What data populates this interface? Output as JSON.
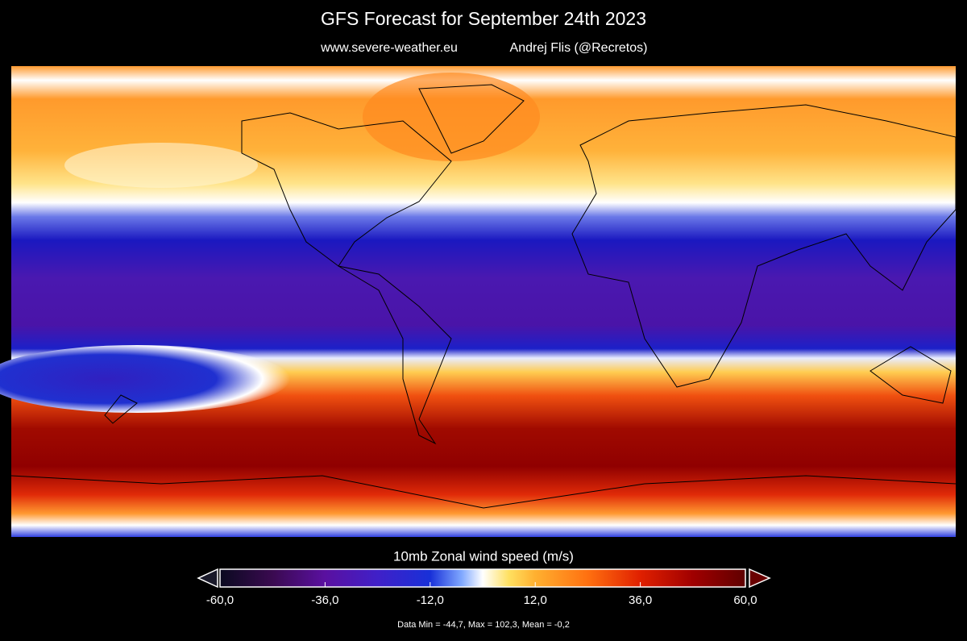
{
  "header": {
    "title": "GFS Forecast for September 24th 2023",
    "site": "www.severe-weather.eu",
    "author": "Andrej Flis (@Recretos)"
  },
  "colorbar": {
    "label": "10mb Zonal wind speed (m/s)",
    "range": [
      -60,
      60
    ],
    "ticks": [
      {
        "value": -60,
        "label": "-60,0"
      },
      {
        "value": -36,
        "label": "-36,0"
      },
      {
        "value": -12,
        "label": "-12,0"
      },
      {
        "value": 12,
        "label": "12,0"
      },
      {
        "value": 36,
        "label": "36,0"
      },
      {
        "value": 60,
        "label": "60,0"
      }
    ]
  },
  "footer": {
    "stats": "Data Min = -44,7, Max = 102,3, Mean = -0,2"
  }
}
